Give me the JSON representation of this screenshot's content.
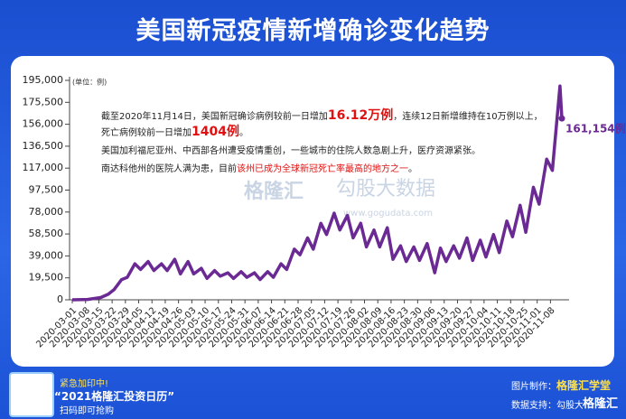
{
  "header": {
    "title": "美国新冠疫情新增确诊变化趋势"
  },
  "chart_data": {
    "type": "line",
    "unit_label": "(单位：例)",
    "color": "#6b2a93",
    "xlim": [
      "2020-03-01",
      "2020-11-14"
    ],
    "xticks": [
      "2020-03-01",
      "2020-03-08",
      "2020-03-15",
      "2020-03-22",
      "2020-03-29",
      "2020-04-05",
      "2020-04-12",
      "2020-04-19",
      "2020-04-26",
      "2020-05-03",
      "2020-05-10",
      "2020-05-17",
      "2020-05-24",
      "2020-05-31",
      "2020-06-07",
      "2020-06-14",
      "2020-06-21",
      "2020-06-28",
      "2020-07-05",
      "2020-07-12",
      "2020-07-19",
      "2020-07-26",
      "2020-08-02",
      "2020-08-09",
      "2020-08-16",
      "2020-08-23",
      "2020-08-30",
      "2020-09-06",
      "2020-09-13",
      "2020-09-20",
      "2020-09-27",
      "2020-10-04",
      "2020-10-11",
      "2020-10-18",
      "2020-10-25",
      "2020-11-01",
      "2020-11-08"
    ],
    "ylim": [
      0,
      195000
    ],
    "yticks": [
      0,
      {
        "value": 19500,
        "label": "19,500"
      },
      {
        "value": 39000,
        "label": "39,000"
      },
      {
        "value": 58500,
        "label": "58,500"
      },
      {
        "value": 78000,
        "label": "78,000"
      },
      {
        "value": 97500,
        "label": "97,500"
      },
      {
        "value": 117000,
        "label": "117,000"
      },
      {
        "value": 136500,
        "label": "136,500"
      },
      {
        "value": 156000,
        "label": "156,000"
      },
      {
        "value": 175500,
        "label": "175,500"
      },
      {
        "value": 195000,
        "label": "195,000"
      }
    ],
    "x": [
      "2020-03-01",
      "2020-03-09",
      "2020-03-16",
      "2020-03-20",
      "2020-03-23",
      "2020-03-27",
      "2020-03-30",
      "2020-04-03",
      "2020-04-06",
      "2020-04-10",
      "2020-04-13",
      "2020-04-17",
      "2020-04-20",
      "2020-04-24",
      "2020-04-27",
      "2020-05-01",
      "2020-05-04",
      "2020-05-08",
      "2020-05-11",
      "2020-05-15",
      "2020-05-18",
      "2020-05-22",
      "2020-05-25",
      "2020-05-29",
      "2020-06-01",
      "2020-06-05",
      "2020-06-08",
      "2020-06-12",
      "2020-06-15",
      "2020-06-19",
      "2020-06-22",
      "2020-06-26",
      "2020-06-29",
      "2020-07-03",
      "2020-07-06",
      "2020-07-10",
      "2020-07-13",
      "2020-07-17",
      "2020-07-20",
      "2020-07-24",
      "2020-07-27",
      "2020-07-31",
      "2020-08-03",
      "2020-08-07",
      "2020-08-10",
      "2020-08-14",
      "2020-08-17",
      "2020-08-21",
      "2020-08-24",
      "2020-08-28",
      "2020-08-31",
      "2020-09-04",
      "2020-09-08",
      "2020-09-11",
      "2020-09-14",
      "2020-09-18",
      "2020-09-21",
      "2020-09-25",
      "2020-09-28",
      "2020-10-02",
      "2020-10-05",
      "2020-10-09",
      "2020-10-12",
      "2020-10-16",
      "2020-10-19",
      "2020-10-23",
      "2020-10-26",
      "2020-10-30",
      "2020-11-02",
      "2020-11-06",
      "2020-11-09",
      "2020-11-13",
      "2020-11-14"
    ],
    "values": [
      0,
      300,
      2000,
      5000,
      9000,
      18000,
      20000,
      32000,
      27000,
      34000,
      26000,
      32000,
      26000,
      36000,
      23000,
      34000,
      23000,
      28000,
      19000,
      26000,
      21000,
      24000,
      19000,
      25000,
      20000,
      24000,
      18000,
      25000,
      20000,
      32000,
      27000,
      45000,
      40000,
      55000,
      45000,
      68000,
      58000,
      77000,
      62000,
      75000,
      55000,
      68000,
      47000,
      62000,
      47000,
      64000,
      36000,
      48000,
      34000,
      47000,
      35000,
      50000,
      24000,
      46000,
      34000,
      48000,
      37000,
      55000,
      35000,
      53000,
      38000,
      58000,
      42000,
      70000,
      56000,
      84000,
      60000,
      100000,
      85000,
      125000,
      115000,
      190000,
      161154
    ],
    "end_label": "161,154例",
    "watermarks": [
      "格隆汇",
      "勾股大数据",
      "www.gogudata.com"
    ]
  },
  "annotations": {
    "paragraphs": [
      [
        {
          "text": "截至2020年11月14日，美国新冠确诊病例较前一日增加"
        },
        {
          "text": "16.12万例",
          "highlight": true
        },
        {
          "text": "，连续12日新增维持在10万例以上，死亡病例较前一日增加"
        },
        {
          "text": "1404例",
          "highlight": true
        },
        {
          "text": "。"
        }
      ],
      [
        {
          "text": "美国加利福尼亚州、中西部各州遭受疫情重创，一些城市的住院人数急剧上升，医疗资源紧张。"
        }
      ],
      [
        {
          "text": "南达科他州的医院人满为患，目前"
        },
        {
          "text": "该州已成为全球新冠死亡率最高的地方之一",
          "highlight": true,
          "small": true
        },
        {
          "text": "。"
        }
      ]
    ]
  },
  "footer": {
    "promo_line1": "紧急加印中!",
    "promo_title": "“2021格隆汇投资日历”",
    "promo_line3": "扫码即可抢购",
    "credit_design_label": "图片制作：",
    "credit_design": "格隆汇学堂",
    "credit_data": "数据支持：勾股大数据",
    "brand": "格隆汇"
  }
}
